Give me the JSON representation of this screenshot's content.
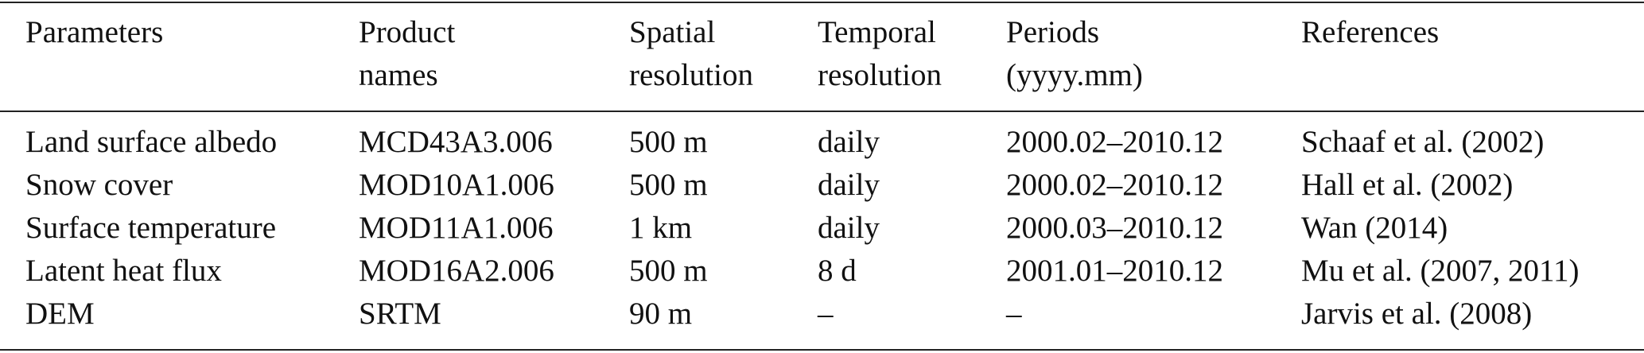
{
  "table": {
    "header": [
      [
        "Parameters"
      ],
      [
        "Product",
        "names"
      ],
      [
        "Spatial",
        "resolution"
      ],
      [
        "Temporal",
        "resolution"
      ],
      [
        "Periods",
        "(yyyy.mm)"
      ],
      [
        "References"
      ]
    ],
    "rows": [
      [
        "Land surface albedo",
        "MCD43A3.006",
        "500 m",
        "daily",
        "2000.02–2010.12",
        "Schaaf et al. (2002)"
      ],
      [
        "Snow cover",
        "MOD10A1.006",
        "500 m",
        "daily",
        "2000.02–2010.12",
        "Hall et al. (2002)"
      ],
      [
        "Surface temperature",
        "MOD11A1.006",
        "1 km",
        "daily",
        "2000.03–2010.12",
        "Wan (2014)"
      ],
      [
        "Latent heat flux",
        "MOD16A2.006",
        "500 m",
        "8 d",
        "2001.01–2010.12",
        "Mu et al. (2007, 2011)"
      ],
      [
        "DEM",
        "SRTM",
        "90 m",
        "–",
        "–",
        "Jarvis et al. (2008)"
      ]
    ]
  }
}
